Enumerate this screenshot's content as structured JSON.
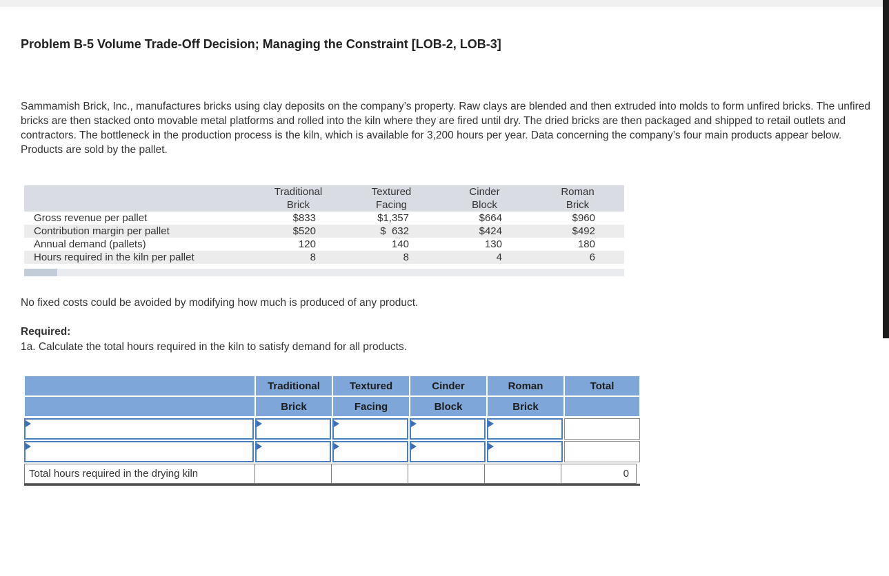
{
  "colors": {
    "answer_header_blue": "#7EA6D8",
    "input_cell_border_blue": "#4A7EBC",
    "data_header_band": "#D9DCE3",
    "alt_row_gray": "#ECECEC",
    "scrollbar_dark": "#1C1C1C"
  },
  "icons": {
    "answer_marker": "blue right-pointing triangle marking an answer input cell"
  },
  "page": {
    "title": "Problem B-5 Volume Trade-Off Decision; Managing the Constraint [LOB-2, LOB-3]",
    "intro": "Sammamish Brick, Inc., manufactures bricks using clay deposits on the company’s property. Raw clays are blended and then extruded into molds to form unfired bricks. The unfired bricks are then stacked onto movable metal platforms and rolled into the kiln where they are fired until dry. The dried bricks are then packaged and shipped to retail outlets and contractors. The bottleneck in the production process is the kiln, which is available for 3,200 hours per year. Data concerning the company’s four main products appear below. Products are sold by the pallet.",
    "note": "No fixed costs could be avoided by modifying how much is produced of any product.",
    "required_label": "Required:",
    "requirement_1a": "1a. Calculate the total hours required in the kiln to satisfy demand for all products."
  },
  "data_table": {
    "columns": [
      {
        "line1": "Traditional",
        "line2": "Brick"
      },
      {
        "line1": "Textured",
        "line2": "Facing"
      },
      {
        "line1": "Cinder",
        "line2": "Block"
      },
      {
        "line1": "Roman",
        "line2": "Brick"
      }
    ],
    "rows": [
      {
        "label": "Gross revenue per pallet",
        "values": [
          "$833",
          "$1,357",
          "$664",
          "$960"
        ]
      },
      {
        "label": "Contribution margin per pallet",
        "values": [
          "$520",
          "$  632",
          "$424",
          "$492"
        ]
      },
      {
        "label": "Annual demand (pallets)",
        "values": [
          "120",
          "140",
          "130",
          "180"
        ]
      },
      {
        "label": "Hours required in the kiln per pallet",
        "values": [
          "8",
          "8",
          "4",
          "6"
        ]
      }
    ]
  },
  "answer_table": {
    "header_row1": [
      "",
      "Traditional",
      "Textured",
      "Cinder",
      "Roman",
      "Total"
    ],
    "header_row2": [
      "",
      "Brick",
      "Facing",
      "Block",
      "Brick",
      ""
    ],
    "total_row": {
      "label": "Total hours required in the drying kiln",
      "total": "0"
    }
  }
}
